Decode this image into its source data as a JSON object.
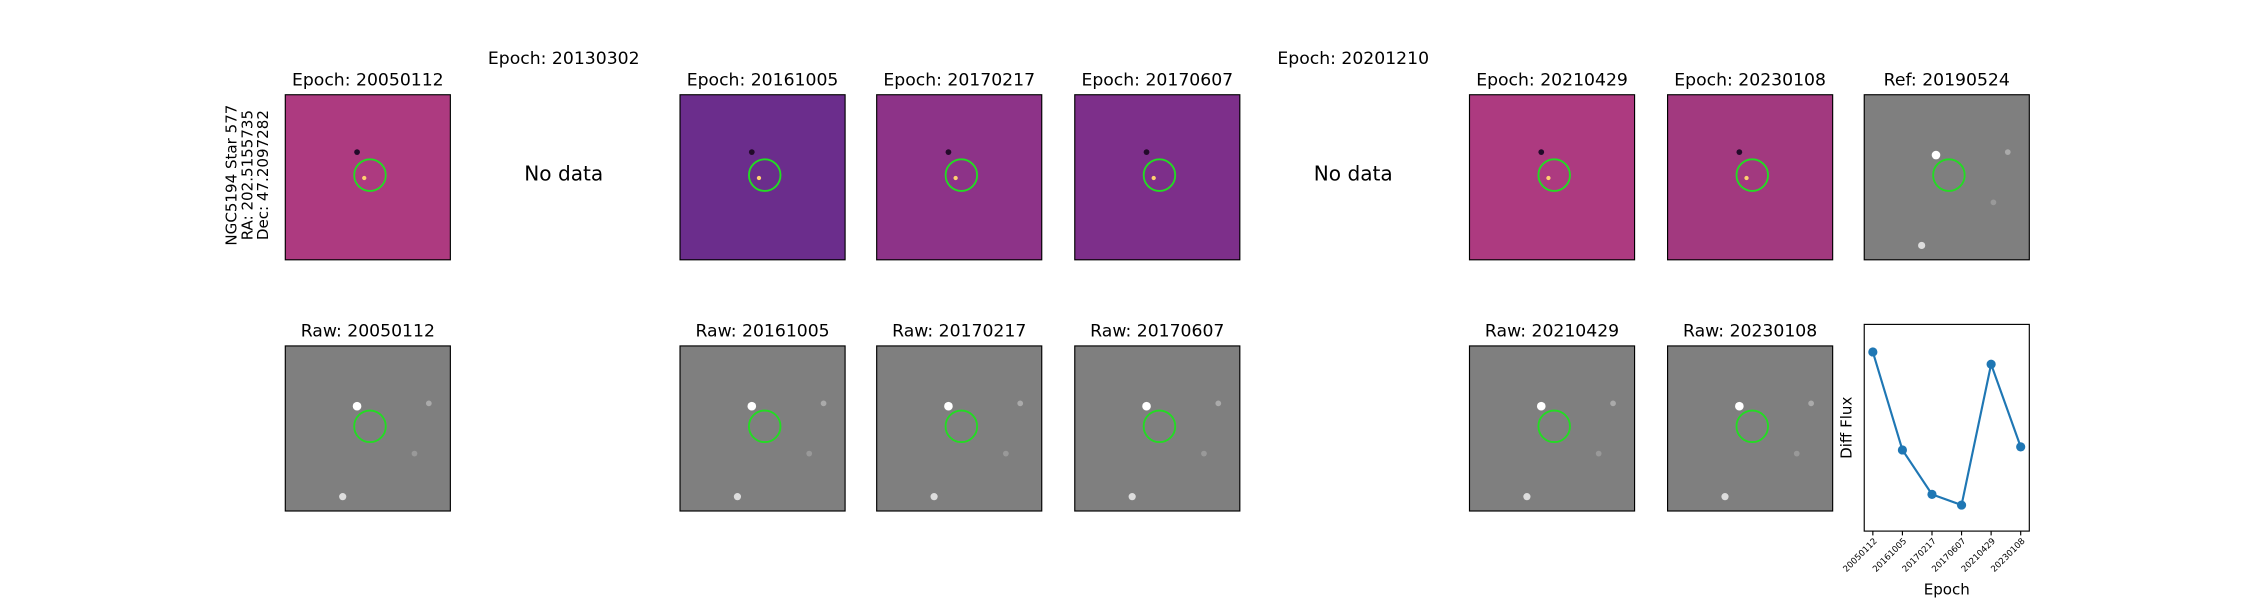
{
  "target": {
    "name": "NGC5194 Star 577",
    "ra": "RA: 202.5155735",
    "dec": "Dec: 47.2097282"
  },
  "diff_row": [
    "Epoch: 20050112",
    "Epoch: 20161005",
    "Epoch: 20170217",
    "Epoch: 20170607",
    "Epoch: 20210429",
    "Epoch: 20230108",
    "Ref: 20190524"
  ],
  "raw_row": [
    "Raw: 20050112",
    "Raw: 20161005",
    "Raw: 20170217",
    "Raw: 20170607",
    "Raw: 20210429",
    "Raw: 20230108"
  ],
  "no_data": [
    {
      "title": "Epoch: 20130302",
      "text": "No data"
    },
    {
      "title": "Epoch: 20201210",
      "text": "No data"
    }
  ],
  "chart_data": {
    "type": "line",
    "ylabel": "Diff Flux",
    "xlabel": "Epoch",
    "categories": [
      "20050112",
      "20161005",
      "20170217",
      "20170607",
      "20210429",
      "20230108"
    ],
    "series": [
      {
        "name": "Diff Flux",
        "color": "#1f77b4",
        "values": [
          1.0,
          0.36,
          0.07,
          0.0,
          0.92,
          0.38
        ]
      }
    ],
    "ylim": [
      -0.17,
      1.18
    ]
  }
}
